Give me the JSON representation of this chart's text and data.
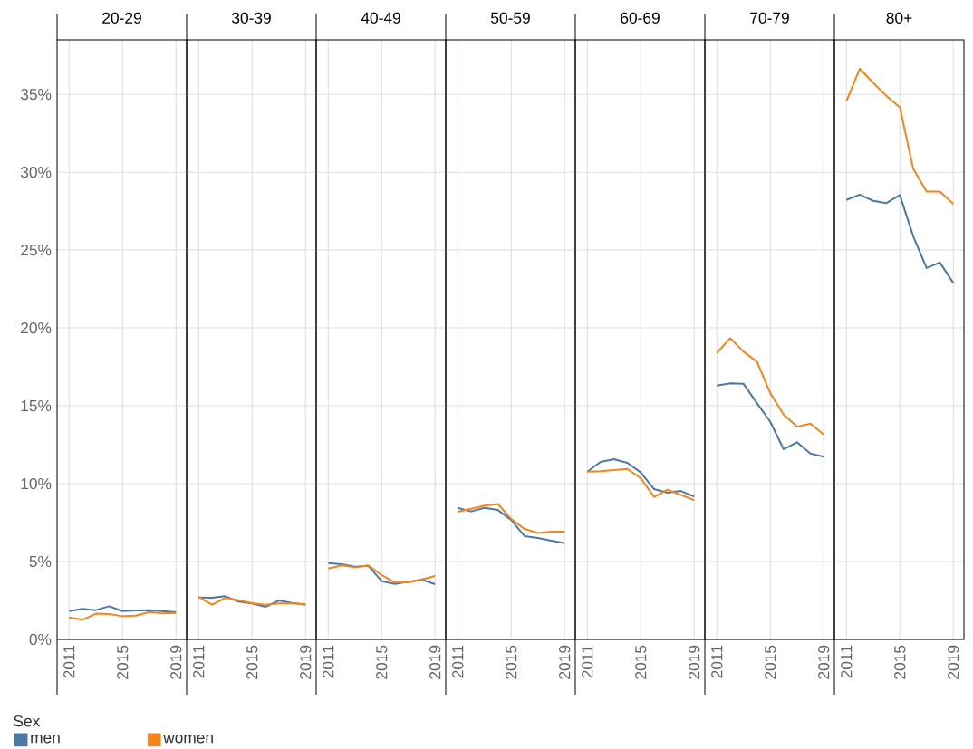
{
  "chart_data": [
    {
      "type": "line",
      "title": "20-29",
      "x": [
        2011,
        2012,
        2013,
        2014,
        2015,
        2016,
        2017,
        2018,
        2019
      ],
      "xlim": [
        2010.1,
        2019.8
      ],
      "xticks": [
        2011,
        2015,
        2019
      ],
      "ylim": [
        0,
        38.5
      ],
      "yticks": [
        {
          "value": 0,
          "label": "0%"
        },
        {
          "value": 5,
          "label": "5%"
        },
        {
          "value": 10,
          "label": "10%"
        },
        {
          "value": 15,
          "label": "15%"
        },
        {
          "value": 20,
          "label": "20%"
        },
        {
          "value": 25,
          "label": "25%"
        },
        {
          "value": 30,
          "label": "30%"
        },
        {
          "value": 35,
          "label": "35%"
        }
      ],
      "grid": true,
      "legend": "bottom",
      "legend_title": "Sex",
      "series": [
        {
          "name": "men",
          "color": "#4c78a8",
          "values": [
            1.82,
            1.96,
            1.88,
            2.13,
            1.82,
            1.86,
            1.88,
            1.82,
            1.74
          ]
        },
        {
          "name": "women",
          "color": "#f58518",
          "values": [
            1.41,
            1.26,
            1.65,
            1.63,
            1.49,
            1.53,
            1.76,
            1.67,
            1.7
          ]
        }
      ]
    },
    {
      "type": "line",
      "title": "30-39",
      "x": [
        2011,
        2012,
        2013,
        2014,
        2015,
        2016,
        2017,
        2018,
        2019
      ],
      "xlim": [
        2010.1,
        2019.8
      ],
      "xticks": [
        2011,
        2015,
        2019
      ],
      "ylim": [
        0,
        38.5
      ],
      "yticks": [
        0,
        5,
        10,
        15,
        20,
        25,
        30,
        35
      ],
      "grid": true,
      "tick_labels": "x",
      "series": [
        {
          "color": "#4c78a8",
          "values": [
            2.69,
            2.67,
            2.77,
            2.42,
            2.31,
            2.09,
            2.5,
            2.34,
            2.23
          ]
        },
        {
          "color": "#f58518",
          "values": [
            2.73,
            2.23,
            2.66,
            2.52,
            2.33,
            2.23,
            2.31,
            2.31,
            2.27
          ]
        }
      ]
    },
    {
      "type": "line",
      "title": "40-49",
      "x": [
        2011,
        2012,
        2013,
        2014,
        2015,
        2016,
        2017,
        2018,
        2019
      ],
      "xlim": [
        2010.1,
        2019.8
      ],
      "xticks": [
        2011,
        2015,
        2019
      ],
      "ylim": [
        0,
        38.5
      ],
      "yticks": [
        0,
        5,
        10,
        15,
        20,
        25,
        30,
        35
      ],
      "grid": true,
      "tick_labels": "x",
      "series": [
        {
          "color": "#4c78a8",
          "values": [
            4.9,
            4.83,
            4.67,
            4.73,
            3.74,
            3.56,
            3.7,
            3.84,
            3.55
          ]
        },
        {
          "color": "#f58518",
          "values": [
            4.55,
            4.75,
            4.63,
            4.75,
            4.13,
            3.66,
            3.66,
            3.85,
            4.07
          ]
        }
      ]
    },
    {
      "type": "line",
      "title": "50-59",
      "x": [
        2011,
        2012,
        2013,
        2014,
        2015,
        2016,
        2017,
        2018,
        2019
      ],
      "xlim": [
        2010.1,
        2019.8
      ],
      "xticks": [
        2011,
        2015,
        2019
      ],
      "ylim": [
        0,
        38.5
      ],
      "yticks": [
        0,
        5,
        10,
        15,
        20,
        25,
        30,
        35
      ],
      "grid": true,
      "tick_labels": "x",
      "series": [
        {
          "color": "#4c78a8",
          "values": [
            8.45,
            8.22,
            8.45,
            8.31,
            7.67,
            6.63,
            6.51,
            6.34,
            6.18
          ]
        },
        {
          "color": "#f58518",
          "values": [
            8.2,
            8.39,
            8.59,
            8.7,
            7.73,
            7.09,
            6.84,
            6.92,
            6.92
          ]
        }
      ]
    },
    {
      "type": "line",
      "title": "60-69",
      "x": [
        2011,
        2012,
        2013,
        2014,
        2015,
        2016,
        2017,
        2018,
        2019
      ],
      "xlim": [
        2010.1,
        2019.8
      ],
      "xticks": [
        2011,
        2015,
        2019
      ],
      "ylim": [
        0,
        38.5
      ],
      "yticks": [
        0,
        5,
        10,
        15,
        20,
        25,
        30,
        35
      ],
      "grid": true,
      "tick_labels": "x",
      "series": [
        {
          "color": "#4c78a8",
          "values": [
            10.77,
            11.4,
            11.57,
            11.34,
            10.72,
            9.65,
            9.42,
            9.53,
            9.17
          ]
        },
        {
          "color": "#f58518",
          "values": [
            10.77,
            10.8,
            10.87,
            10.95,
            10.35,
            9.15,
            9.61,
            9.28,
            8.94
          ]
        }
      ]
    },
    {
      "type": "line",
      "title": "70-79",
      "x": [
        2011,
        2012,
        2013,
        2014,
        2015,
        2016,
        2017,
        2018,
        2019
      ],
      "xlim": [
        2010.1,
        2019.8
      ],
      "xticks": [
        2011,
        2015,
        2019
      ],
      "ylim": [
        0,
        38.5
      ],
      "yticks": [
        0,
        5,
        10,
        15,
        20,
        25,
        30,
        35
      ],
      "grid": true,
      "tick_labels": "x",
      "series": [
        {
          "color": "#4c78a8",
          "values": [
            16.3,
            16.44,
            16.41,
            15.17,
            13.97,
            12.21,
            12.66,
            11.94,
            11.73
          ]
        },
        {
          "color": "#f58518",
          "values": [
            18.39,
            19.34,
            18.47,
            17.83,
            15.81,
            14.44,
            13.66,
            13.86,
            13.16
          ]
        }
      ]
    },
    {
      "type": "line",
      "title": "80+",
      "x": [
        2011,
        2012,
        2013,
        2014,
        2015,
        2016,
        2017,
        2018,
        2019
      ],
      "xlim": [
        2010.1,
        2019.8
      ],
      "xticks": [
        2011,
        2015,
        2019
      ],
      "ylim": [
        0,
        38.5
      ],
      "yticks": [
        0,
        5,
        10,
        15,
        20,
        25,
        30,
        35
      ],
      "grid": true,
      "tick_labels": "x",
      "series": [
        {
          "color": "#4c78a8",
          "values": [
            28.22,
            28.56,
            28.16,
            28.02,
            28.53,
            25.89,
            23.85,
            24.2,
            22.89
          ]
        },
        {
          "color": "#f58518",
          "values": [
            34.57,
            36.65,
            35.74,
            34.9,
            34.17,
            30.22,
            28.76,
            28.76,
            27.97
          ]
        }
      ]
    }
  ]
}
